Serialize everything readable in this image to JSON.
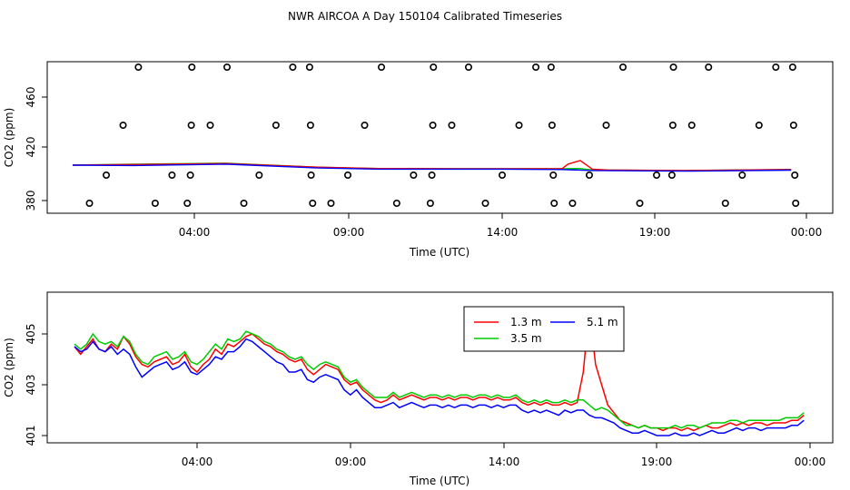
{
  "title": "NWR AIRCOA A  Day 150104  Calibrated Timeseries",
  "colors": {
    "s1": "#ff0000",
    "s2": "#00cc00",
    "s3": "#0000ff",
    "axis": "#000000"
  },
  "chart_data": [
    {
      "type": "scatter",
      "xlabel": "Time (UTC)",
      "ylabel": "CO2 (ppm)",
      "x_ticks": [
        "04:00",
        "09:00",
        "14:00",
        "19:00",
        "00:00"
      ],
      "y_ticks": [
        "380",
        "420",
        "460"
      ],
      "xlim": [
        0,
        24
      ],
      "ylim": [
        372,
        485
      ],
      "grid": false,
      "points": [
        {
          "x": 0.55,
          "y": 375
        },
        {
          "x": 1.1,
          "y": 396
        },
        {
          "x": 1.65,
          "y": 436
        },
        {
          "x": 2.15,
          "y": 482
        },
        {
          "x": 2.7,
          "y": 375
        },
        {
          "x": 3.25,
          "y": 396
        },
        {
          "x": 3.75,
          "y": 375
        },
        {
          "x": 3.85,
          "y": 396
        },
        {
          "x": 3.88,
          "y": 436
        },
        {
          "x": 3.9,
          "y": 482
        },
        {
          "x": 4.5,
          "y": 436
        },
        {
          "x": 5.05,
          "y": 482
        },
        {
          "x": 5.6,
          "y": 375
        },
        {
          "x": 6.1,
          "y": 396
        },
        {
          "x": 6.65,
          "y": 436
        },
        {
          "x": 7.2,
          "y": 482
        },
        {
          "x": 7.75,
          "y": 482
        },
        {
          "x": 7.78,
          "y": 436
        },
        {
          "x": 7.8,
          "y": 396
        },
        {
          "x": 7.85,
          "y": 375
        },
        {
          "x": 8.45,
          "y": 375
        },
        {
          "x": 9.0,
          "y": 396
        },
        {
          "x": 9.55,
          "y": 436
        },
        {
          "x": 10.1,
          "y": 482
        },
        {
          "x": 10.6,
          "y": 375
        },
        {
          "x": 11.15,
          "y": 396
        },
        {
          "x": 11.7,
          "y": 375
        },
        {
          "x": 11.75,
          "y": 396
        },
        {
          "x": 11.78,
          "y": 436
        },
        {
          "x": 11.8,
          "y": 482
        },
        {
          "x": 12.4,
          "y": 436
        },
        {
          "x": 12.95,
          "y": 482
        },
        {
          "x": 13.5,
          "y": 375
        },
        {
          "x": 14.05,
          "y": 396
        },
        {
          "x": 14.6,
          "y": 436
        },
        {
          "x": 15.15,
          "y": 482
        },
        {
          "x": 15.65,
          "y": 482
        },
        {
          "x": 15.68,
          "y": 436
        },
        {
          "x": 15.72,
          "y": 396
        },
        {
          "x": 15.75,
          "y": 375
        },
        {
          "x": 16.35,
          "y": 375
        },
        {
          "x": 16.9,
          "y": 396
        },
        {
          "x": 17.45,
          "y": 436
        },
        {
          "x": 18.0,
          "y": 482
        },
        {
          "x": 18.55,
          "y": 375
        },
        {
          "x": 19.1,
          "y": 396
        },
        {
          "x": 19.6,
          "y": 396
        },
        {
          "x": 19.63,
          "y": 436
        },
        {
          "x": 19.65,
          "y": 482
        },
        {
          "x": 20.25,
          "y": 436
        },
        {
          "x": 20.8,
          "y": 482
        },
        {
          "x": 21.35,
          "y": 375
        },
        {
          "x": 21.9,
          "y": 396
        },
        {
          "x": 22.45,
          "y": 436
        },
        {
          "x": 23.0,
          "y": 482
        },
        {
          "x": 23.55,
          "y": 482
        },
        {
          "x": 23.58,
          "y": 436
        },
        {
          "x": 23.62,
          "y": 396
        },
        {
          "x": 23.65,
          "y": 375
        }
      ],
      "lines": [
        {
          "color": "#00cc00",
          "x": [
            0,
            2,
            5,
            8,
            10,
            14,
            16,
            16.6,
            17,
            20,
            23.5
          ],
          "y": [
            404,
            404.5,
            405,
            403,
            402.3,
            402.2,
            402.2,
            402.3,
            401.6,
            401.3,
            401.8
          ]
        },
        {
          "color": "#ff0000",
          "x": [
            0,
            2,
            5,
            8,
            10,
            14,
            16,
            16.2,
            16.6,
            17,
            17.5,
            20,
            23.5
          ],
          "y": [
            404,
            404.3,
            404.8,
            403,
            402.3,
            402.2,
            402.2,
            404.5,
            406.3,
            402,
            401.6,
            401.3,
            401.8
          ]
        },
        {
          "color": "#0000ff",
          "x": [
            0,
            2,
            5,
            8,
            10,
            14,
            16,
            17,
            20,
            23.5
          ],
          "y": [
            404,
            403.8,
            404.5,
            402.6,
            402,
            402,
            401.8,
            401.3,
            401,
            401.5
          ]
        }
      ]
    },
    {
      "type": "line",
      "xlabel": "Time (UTC)",
      "ylabel": "CO2 (ppm)",
      "x_ticks": [
        "04:00",
        "09:00",
        "14:00",
        "19:00",
        "00:00"
      ],
      "y_ticks": [
        "401",
        "403",
        "405"
      ],
      "xlim": [
        0,
        24
      ],
      "ylim": [
        400.7,
        406.2
      ],
      "grid": false,
      "legend": {
        "position": "top-center",
        "entries": [
          "1.3 m",
          "5.1 m",
          "3.5 m"
        ]
      },
      "series": [
        {
          "name": "1.3 m",
          "color": "#ff0000",
          "x": [
            0.0,
            0.2,
            0.4,
            0.6,
            0.8,
            1.0,
            1.2,
            1.4,
            1.6,
            1.8,
            2.0,
            2.2,
            2.4,
            2.6,
            2.8,
            3.0,
            3.2,
            3.4,
            3.6,
            3.8,
            4.0,
            4.2,
            4.4,
            4.6,
            4.8,
            5.0,
            5.2,
            5.4,
            5.6,
            5.8,
            6.0,
            6.2,
            6.4,
            6.6,
            6.8,
            7.0,
            7.2,
            7.4,
            7.6,
            7.8,
            8.0,
            8.2,
            8.4,
            8.6,
            8.8,
            9.0,
            9.2,
            9.4,
            9.6,
            9.8,
            10.0,
            10.2,
            10.4,
            10.6,
            10.8,
            11.0,
            11.2,
            11.4,
            11.6,
            11.8,
            12.0,
            12.2,
            12.4,
            12.6,
            12.8,
            13.0,
            13.2,
            13.4,
            13.6,
            13.8,
            14.0,
            14.2,
            14.4,
            14.6,
            14.8,
            15.0,
            15.2,
            15.4,
            15.6,
            15.8,
            16.0,
            16.2,
            16.4,
            16.6,
            16.8,
            17.0,
            17.2,
            17.4,
            17.6,
            17.8,
            18.0,
            18.2,
            18.4,
            18.6,
            18.8,
            19.0,
            19.2,
            19.4,
            19.6,
            19.8,
            20.0,
            20.2,
            20.4,
            20.6,
            20.8,
            21.0,
            21.2,
            21.4,
            21.6,
            21.8,
            22.0,
            22.2,
            22.4,
            22.6,
            22.8,
            23.0,
            23.2,
            23.4,
            23.6,
            23.8
          ],
          "y": [
            404.5,
            404.2,
            404.5,
            404.8,
            404.4,
            404.3,
            404.6,
            404.4,
            404.9,
            404.6,
            404.1,
            403.8,
            403.7,
            403.9,
            404.0,
            404.1,
            403.8,
            403.9,
            404.2,
            403.7,
            403.5,
            403.8,
            404.0,
            404.4,
            404.2,
            404.6,
            404.5,
            404.7,
            404.9,
            405.0,
            404.8,
            404.6,
            404.5,
            404.3,
            404.2,
            404.0,
            403.9,
            404.0,
            403.6,
            403.4,
            403.6,
            403.8,
            403.7,
            403.6,
            403.2,
            403.0,
            403.1,
            402.8,
            402.6,
            402.4,
            402.3,
            402.4,
            402.6,
            402.4,
            402.5,
            402.6,
            402.5,
            402.4,
            402.5,
            402.5,
            402.4,
            402.5,
            402.4,
            402.5,
            402.5,
            402.4,
            402.5,
            402.5,
            402.4,
            402.5,
            402.4,
            402.4,
            402.5,
            402.3,
            402.2,
            402.3,
            402.2,
            402.3,
            402.2,
            402.2,
            402.3,
            402.2,
            402.3,
            403.5,
            406.0,
            403.8,
            403.0,
            402.2,
            401.9,
            401.6,
            401.5,
            401.4,
            401.3,
            401.4,
            401.3,
            401.3,
            401.2,
            401.3,
            401.3,
            401.2,
            401.3,
            401.2,
            401.3,
            401.4,
            401.3,
            401.3,
            401.4,
            401.5,
            401.4,
            401.5,
            401.4,
            401.5,
            401.5,
            401.4,
            401.5,
            401.5,
            401.5,
            401.6,
            401.6,
            401.8
          ]
        },
        {
          "name": "5.1 m",
          "color": "#0000ff",
          "x": [
            0.0,
            0.2,
            0.4,
            0.6,
            0.8,
            1.0,
            1.2,
            1.4,
            1.6,
            1.8,
            2.0,
            2.2,
            2.4,
            2.6,
            2.8,
            3.0,
            3.2,
            3.4,
            3.6,
            3.8,
            4.0,
            4.2,
            4.4,
            4.6,
            4.8,
            5.0,
            5.2,
            5.4,
            5.6,
            5.8,
            6.0,
            6.2,
            6.4,
            6.6,
            6.8,
            7.0,
            7.2,
            7.4,
            7.6,
            7.8,
            8.0,
            8.2,
            8.4,
            8.6,
            8.8,
            9.0,
            9.2,
            9.4,
            9.6,
            9.8,
            10.0,
            10.2,
            10.4,
            10.6,
            10.8,
            11.0,
            11.2,
            11.4,
            11.6,
            11.8,
            12.0,
            12.2,
            12.4,
            12.6,
            12.8,
            13.0,
            13.2,
            13.4,
            13.6,
            13.8,
            14.0,
            14.2,
            14.4,
            14.6,
            14.8,
            15.0,
            15.2,
            15.4,
            15.6,
            15.8,
            16.0,
            16.2,
            16.4,
            16.6,
            16.8,
            17.0,
            17.2,
            17.4,
            17.6,
            17.8,
            18.0,
            18.2,
            18.4,
            18.6,
            18.8,
            19.0,
            19.2,
            19.4,
            19.6,
            19.8,
            20.0,
            20.2,
            20.4,
            20.6,
            20.8,
            21.0,
            21.2,
            21.4,
            21.6,
            21.8,
            22.0,
            22.2,
            22.4,
            22.6,
            22.8,
            23.0,
            23.2,
            23.4,
            23.6,
            23.8
          ],
          "y": [
            404.5,
            404.3,
            404.4,
            404.7,
            404.4,
            404.3,
            404.5,
            404.2,
            404.4,
            404.2,
            403.7,
            403.3,
            403.5,
            403.7,
            403.8,
            403.9,
            403.6,
            403.7,
            403.9,
            403.5,
            403.4,
            403.6,
            403.8,
            404.1,
            404.0,
            404.3,
            404.3,
            404.5,
            404.8,
            404.7,
            404.5,
            404.3,
            404.1,
            403.9,
            403.8,
            403.5,
            403.5,
            403.6,
            403.2,
            403.1,
            403.3,
            403.4,
            403.3,
            403.2,
            402.8,
            402.6,
            402.8,
            402.5,
            402.3,
            402.1,
            402.1,
            402.2,
            402.3,
            402.1,
            402.2,
            402.3,
            402.2,
            402.1,
            402.2,
            402.2,
            402.1,
            402.2,
            402.1,
            402.2,
            402.2,
            402.1,
            402.2,
            402.2,
            402.1,
            402.2,
            402.1,
            402.2,
            402.2,
            402.0,
            401.9,
            402.0,
            401.9,
            402.0,
            401.9,
            401.8,
            402.0,
            401.9,
            402.0,
            402.0,
            401.8,
            401.7,
            401.7,
            401.6,
            401.5,
            401.3,
            401.2,
            401.1,
            401.1,
            401.2,
            401.1,
            401.0,
            401.0,
            401.0,
            401.1,
            401.0,
            401.0,
            401.1,
            401.0,
            401.1,
            401.2,
            401.1,
            401.1,
            401.2,
            401.3,
            401.2,
            401.3,
            401.3,
            401.2,
            401.3,
            401.3,
            401.3,
            401.3,
            401.4,
            401.4,
            401.6
          ]
        },
        {
          "name": "3.5 m",
          "color": "#00cc00",
          "x": [
            0.0,
            0.2,
            0.4,
            0.6,
            0.8,
            1.0,
            1.2,
            1.4,
            1.6,
            1.8,
            2.0,
            2.2,
            2.4,
            2.6,
            2.8,
            3.0,
            3.2,
            3.4,
            3.6,
            3.8,
            4.0,
            4.2,
            4.4,
            4.6,
            4.8,
            5.0,
            5.2,
            5.4,
            5.6,
            5.8,
            6.0,
            6.2,
            6.4,
            6.6,
            6.8,
            7.0,
            7.2,
            7.4,
            7.6,
            7.8,
            8.0,
            8.2,
            8.4,
            8.6,
            8.8,
            9.0,
            9.2,
            9.4,
            9.6,
            9.8,
            10.0,
            10.2,
            10.4,
            10.6,
            10.8,
            11.0,
            11.2,
            11.4,
            11.6,
            11.8,
            12.0,
            12.2,
            12.4,
            12.6,
            12.8,
            13.0,
            13.2,
            13.4,
            13.6,
            13.8,
            14.0,
            14.2,
            14.4,
            14.6,
            14.8,
            15.0,
            15.2,
            15.4,
            15.6,
            15.8,
            16.0,
            16.2,
            16.4,
            16.6,
            16.8,
            17.0,
            17.2,
            17.4,
            17.6,
            17.8,
            18.0,
            18.2,
            18.4,
            18.6,
            18.8,
            19.0,
            19.2,
            19.4,
            19.6,
            19.8,
            20.0,
            20.2,
            20.4,
            20.6,
            20.8,
            21.0,
            21.2,
            21.4,
            21.6,
            21.8,
            22.0,
            22.2,
            22.4,
            22.6,
            22.8,
            23.0,
            23.2,
            23.4,
            23.6,
            23.8
          ],
          "y": [
            404.6,
            404.4,
            404.6,
            405.0,
            404.7,
            404.6,
            404.7,
            404.5,
            404.9,
            404.7,
            404.2,
            403.9,
            403.8,
            404.1,
            404.2,
            404.3,
            404.0,
            404.1,
            404.3,
            403.9,
            403.8,
            404.0,
            404.3,
            404.6,
            404.4,
            404.8,
            404.7,
            404.8,
            405.1,
            405.0,
            404.9,
            404.7,
            404.6,
            404.4,
            404.3,
            404.1,
            404.0,
            404.1,
            403.8,
            403.6,
            403.8,
            403.9,
            403.8,
            403.7,
            403.3,
            403.1,
            403.2,
            402.9,
            402.7,
            402.5,
            402.5,
            402.5,
            402.7,
            402.5,
            402.6,
            402.7,
            402.6,
            402.5,
            402.6,
            402.6,
            402.5,
            402.6,
            402.5,
            402.6,
            402.6,
            402.5,
            402.6,
            402.6,
            402.5,
            402.6,
            402.5,
            402.5,
            402.6,
            402.4,
            402.3,
            402.4,
            402.3,
            402.4,
            402.3,
            402.3,
            402.4,
            402.3,
            402.4,
            402.4,
            402.2,
            402.0,
            402.1,
            402.0,
            401.8,
            401.6,
            401.4,
            401.4,
            401.3,
            401.4,
            401.3,
            401.3,
            401.3,
            401.3,
            401.4,
            401.3,
            401.4,
            401.4,
            401.3,
            401.4,
            401.5,
            401.5,
            401.5,
            401.6,
            401.6,
            401.5,
            401.6,
            401.6,
            401.6,
            401.6,
            401.6,
            401.6,
            401.7,
            401.7,
            401.7,
            401.9
          ]
        }
      ]
    }
  ]
}
